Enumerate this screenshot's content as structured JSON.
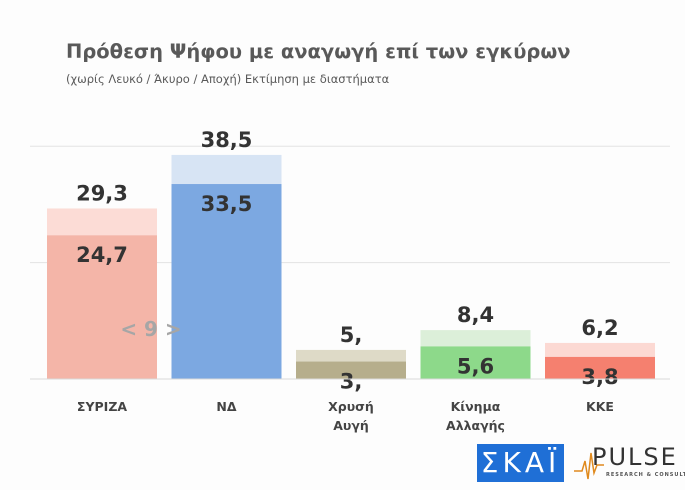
{
  "header": {
    "title": "Πρόθεση Ψήφου με αναγωγή επί των εγκύρων",
    "subtitle": "(χωρίς Λευκό / Άκυρο / Αποχή)   Εκτίμηση με διαστήματα"
  },
  "chart_data": {
    "type": "bar",
    "stacked_range": true,
    "title": "Πρόθεση Ψήφου με αναγωγή επί των εγκύρων",
    "subtitle": "(χωρίς Λευκό / Άκυρο / Αποχή)   Εκτίμηση με διαστήματα",
    "categories": [
      [
        "ΣΥΡΙΖΑ"
      ],
      [
        "ΝΔ"
      ],
      [
        "Χρυσή",
        "Αυγή"
      ],
      [
        "Κίνημα",
        "Αλλαγής"
      ],
      [
        "ΚΚΕ"
      ]
    ],
    "series": [
      {
        "name": "low",
        "values": [
          24.7,
          33.5,
          3.0,
          5.6,
          3.8
        ],
        "labels": [
          "24,7",
          "33,5",
          "3,",
          "5,6",
          "3,8"
        ]
      },
      {
        "name": "high",
        "values": [
          29.3,
          38.5,
          5.0,
          8.4,
          6.2
        ],
        "labels": [
          "29,3",
          "38,5",
          "5,",
          "8,4",
          "6,2"
        ]
      }
    ],
    "colors_low": [
      "#f4b5a8",
      "#7ca8e1",
      "#b6ae8c",
      "#8dd98a",
      "#f5806f"
    ],
    "colors_high": [
      "#fcdcd6",
      "#d7e4f4",
      "#dedac7",
      "#dcefd9",
      "#fcd9d3"
    ],
    "annotation": "< 9 >",
    "ylim": [
      0,
      40
    ],
    "gridlines": [
      0,
      20,
      40
    ],
    "xlabel": "",
    "ylabel": ""
  },
  "logos": {
    "skai": "ΣΚΑΪ",
    "pulse": "PULSE",
    "pulse_sub": "RESEARCH & CONSULTING"
  }
}
